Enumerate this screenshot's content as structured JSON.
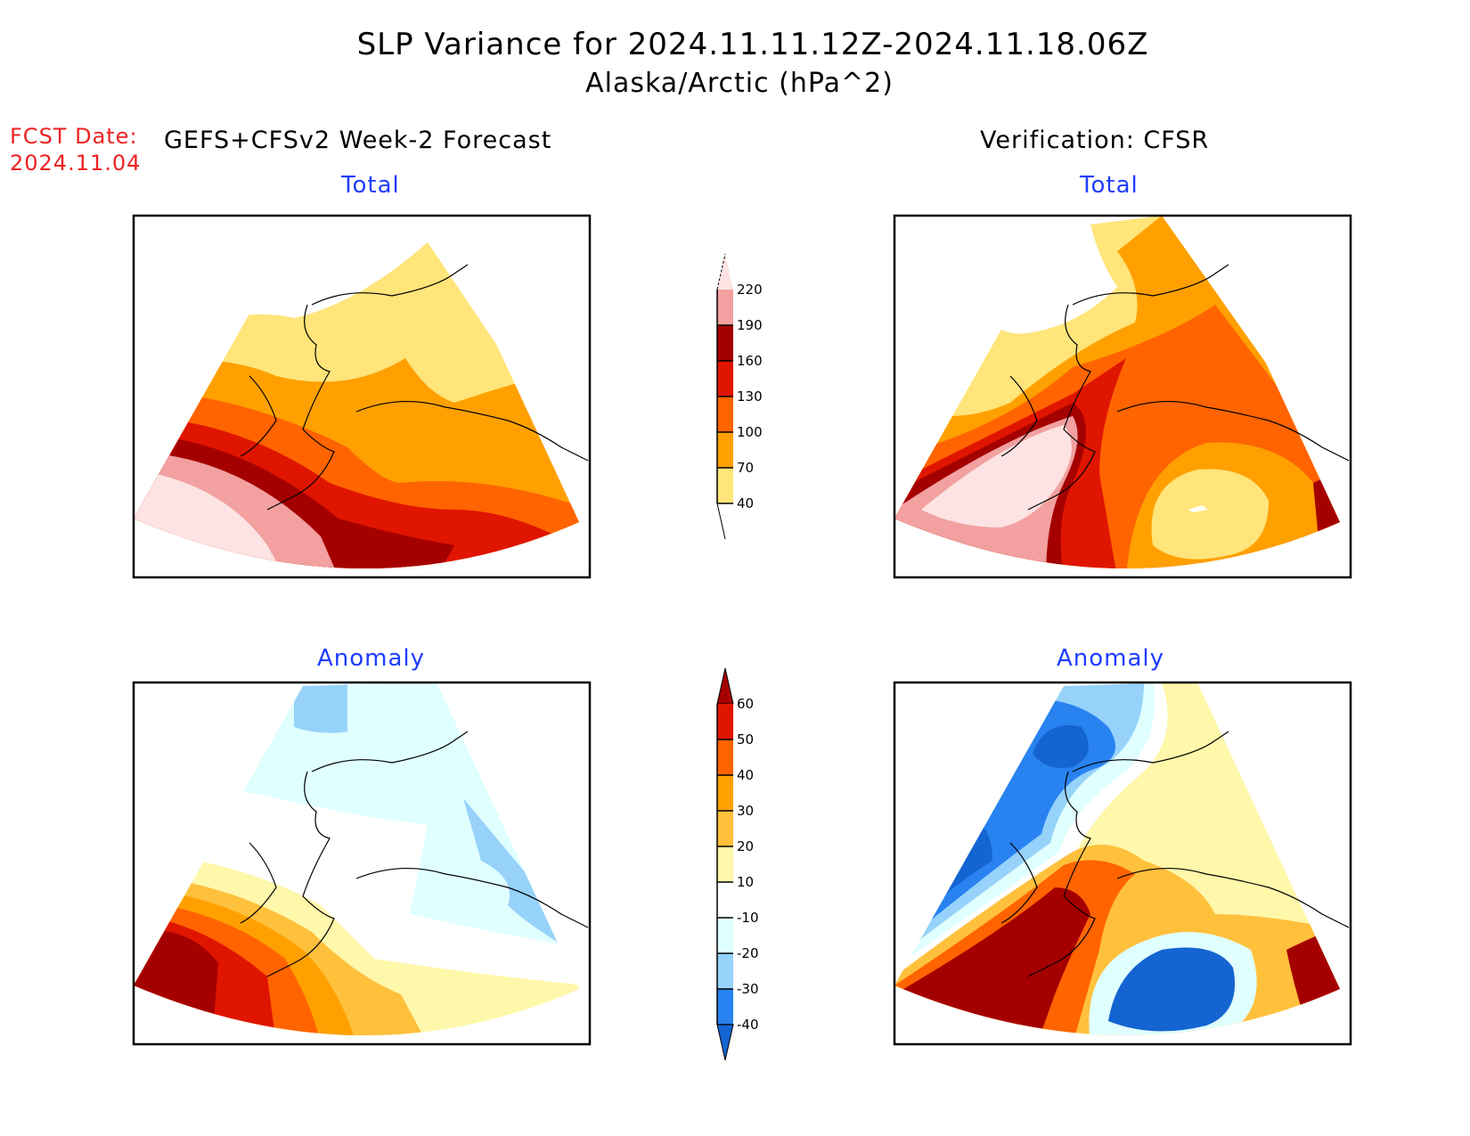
{
  "title": {
    "line1": "SLP Variance for 2024.11.11.12Z-2024.11.18.06Z",
    "line2": "Alaska/Arctic (hPa^2)"
  },
  "forecast": {
    "date_label": "FCST Date:",
    "date_value": "2024.11.04"
  },
  "columns": {
    "left_header": "GEFS+CFSv2 Week-2 Forecast",
    "right_header": "Verification: CFSR"
  },
  "panels": {
    "total_forecast_title": "Total",
    "total_verif_title": "Total",
    "anom_forecast_title": "Anomaly",
    "anom_verif_title": "Anomaly"
  },
  "chart_data": [
    {
      "type": "heatmap",
      "title": "Total",
      "subtitle": "GEFS+CFSv2 Week-2 Forecast",
      "region": "Alaska/Arctic",
      "units": "hPa^2",
      "description": "Filled contours; lowest (40-70) over Arctic Ocean north of Alaska, increasing southward to >220 over the western North Pacific south of the Aleutians; 130-190 band along Aleutians/Gulf of Alaska.",
      "levels": [
        40,
        70,
        100,
        130,
        160,
        190,
        220
      ]
    },
    {
      "type": "heatmap",
      "title": "Total",
      "subtitle": "Verification: CFSR",
      "region": "Alaska/Arctic",
      "units": "hPa^2",
      "description": "Filled contours; <40 over Arctic Ocean, 40-70 over NW Alaska and a local minimum in the Gulf of Alaska; a maximum >220 over the Bering Sea/N Pacific elongated SW-NE; 160-190 near the Pacific Northwest coast.",
      "levels": [
        40,
        70,
        100,
        130,
        160,
        190,
        220
      ]
    },
    {
      "type": "heatmap",
      "title": "Anomaly",
      "subtitle": "GEFS+CFSv2 Week-2 Forecast",
      "region": "Alaska/Arctic",
      "units": "hPa^2",
      "description": "Positive anomalies (>60) over the western North Pacific / Aleutians decreasing northeastward; weak negative (-10 to -30) over Arctic Ocean and NW Canada.",
      "levels": [
        -40,
        -30,
        -20,
        -10,
        10,
        20,
        30,
        40,
        50,
        60
      ]
    },
    {
      "type": "heatmap",
      "title": "Anomaly",
      "subtitle": "Verification: CFSR",
      "region": "Alaska/Arctic",
      "units": "hPa^2",
      "description": "Strong negative (<-40) over Chukchi/Arctic and over the Gulf of Alaska; strong positive (>60) over Bering Sea/Aleutians and near the Pacific Northwest coast; 10-40 over NW Canada.",
      "levels": [
        -40,
        -30,
        -20,
        -10,
        10,
        20,
        30,
        40,
        50,
        60
      ]
    }
  ],
  "colorbars": {
    "total": {
      "labels": [
        "220",
        "190",
        "160",
        "130",
        "100",
        "70",
        "40"
      ],
      "colors_top_to_bottom": [
        "#fde3e3",
        "#f2a0a0",
        "#a50000",
        "#e01500",
        "#ff6400",
        "#ffa000",
        "#ffe57a"
      ]
    },
    "anomaly": {
      "labels": [
        "60",
        "50",
        "40",
        "30",
        "20",
        "10",
        "-10",
        "-20",
        "-30",
        "-40"
      ],
      "colors_top_to_bottom": [
        "#a50000",
        "#e01500",
        "#ff6400",
        "#ffa000",
        "#ffc03c",
        "#fff7aa",
        "#ffffff",
        "#e0ffff",
        "#96d2fa",
        "#2882f0",
        "#1464d2"
      ]
    }
  }
}
